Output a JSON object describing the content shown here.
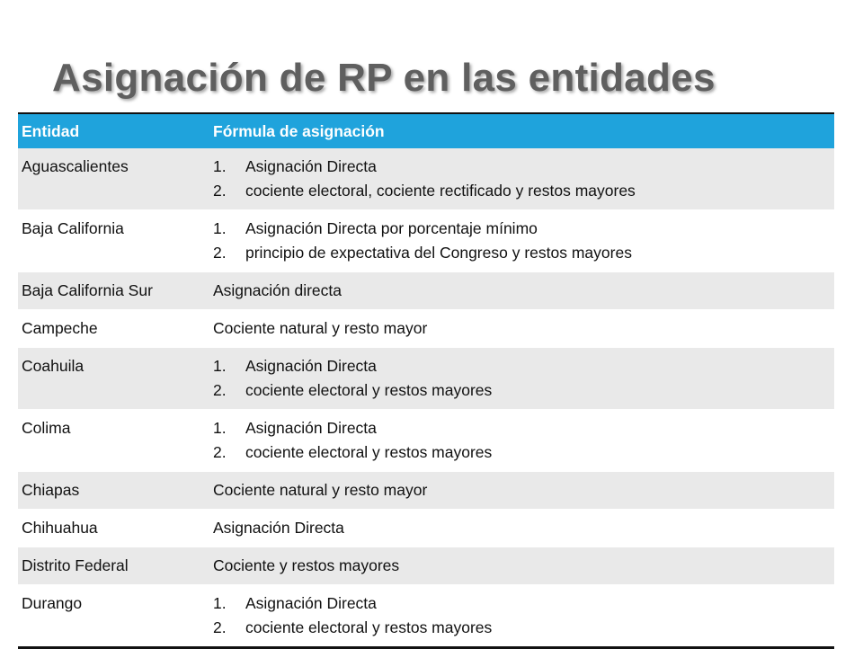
{
  "title": "Asignación de RP en las entidades",
  "table": {
    "headers": {
      "entity": "Entidad",
      "formula": "Fórmula de asignación"
    },
    "rows": [
      {
        "entity": "Aguascalientes",
        "formula": [
          "Asignación Directa",
          "cociente electoral, cociente rectificado y restos mayores"
        ]
      },
      {
        "entity": "Baja California",
        "formula": [
          "Asignación Directa por porcentaje mínimo",
          "principio de expectativa del Congreso y restos mayores"
        ]
      },
      {
        "entity": "Baja California Sur",
        "formula": "Asignación directa"
      },
      {
        "entity": "Campeche",
        "formula": "Cociente natural y resto mayor"
      },
      {
        "entity": "Coahuila",
        "formula": [
          "Asignación Directa",
          "cociente electoral y restos mayores"
        ]
      },
      {
        "entity": "Colima",
        "formula": [
          "Asignación Directa",
          "cociente electoral y restos mayores"
        ]
      },
      {
        "entity": "Chiapas",
        "formula": "Cociente natural y resto mayor"
      },
      {
        "entity": "Chihuahua",
        "formula": "Asignación Directa"
      },
      {
        "entity": "Distrito Federal",
        "formula": "Cociente y restos mayores"
      },
      {
        "entity": "Durango",
        "formula": [
          "Asignación Directa",
          "cociente electoral y restos mayores"
        ]
      }
    ]
  },
  "colors": {
    "header_bg": "#1fa3dc",
    "row_alt_bg": "#e9e9e9",
    "title": "#5f5f5f"
  }
}
